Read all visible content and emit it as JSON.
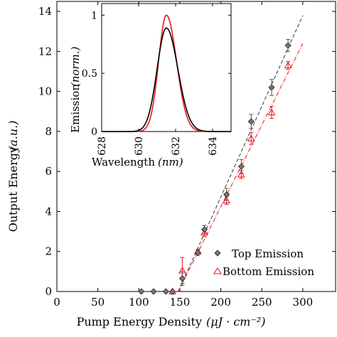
{
  "chart_data": [
    {
      "type": "scatter",
      "xlabel": "Pump Energy Density",
      "xlabel_units": "(μJ · cm⁻²)",
      "ylabel": "Output Energy",
      "ylabel_units": "(a.u.)",
      "xlim": [
        0,
        340
      ],
      "ylim": [
        0,
        14.5
      ],
      "xticks": [
        0,
        50,
        100,
        150,
        200,
        250,
        300
      ],
      "yticks": [
        0,
        2,
        4,
        6,
        8,
        10,
        12,
        14
      ],
      "grid": false,
      "legend": "bottom-right",
      "series": [
        {
          "name": "Top Emission",
          "marker": "diamond",
          "color": "#555555",
          "x": [
            103,
            118,
            133,
            141,
            153,
            172,
            180,
            207,
            225,
            237,
            262,
            282
          ],
          "y": [
            0.0,
            0.0,
            0.0,
            0.0,
            0.65,
            1.95,
            3.1,
            4.85,
            6.25,
            8.5,
            10.2,
            12.3
          ],
          "err": [
            0,
            0,
            0,
            0,
            0.35,
            0.15,
            0.2,
            0.3,
            0.35,
            0.35,
            0.4,
            0.3
          ],
          "fit": {
            "x": [
              148,
              300
            ],
            "y": [
              0.0,
              13.8
            ],
            "style": "dashed",
            "color": "#333333"
          }
        },
        {
          "name": "Bottom Emission",
          "marker": "triangle",
          "color": "#e8141b",
          "x": [
            141,
            153,
            172,
            180,
            207,
            225,
            237,
            262,
            282
          ],
          "y": [
            0.0,
            1.05,
            2.0,
            2.95,
            4.55,
            5.85,
            7.65,
            8.95,
            11.3
          ],
          "err": [
            0,
            0.65,
            0.1,
            0.2,
            0.2,
            0.2,
            0.3,
            0.3,
            0.2
          ],
          "fit": {
            "x": [
              148,
              300
            ],
            "y": [
              0.0,
              12.4
            ],
            "style": "dashdot",
            "color": "#e8141b"
          }
        }
      ]
    },
    {
      "type": "line",
      "inset": true,
      "xlabel": "Wavelength",
      "xlabel_units": "(nm)",
      "ylabel": "Emission",
      "ylabel_units": "(norm.)",
      "xlim": [
        628,
        635
      ],
      "ylim": [
        0,
        1.1
      ],
      "xticks": [
        628,
        630,
        632,
        634
      ],
      "yticks": [
        0,
        0.5,
        1
      ],
      "grid": false,
      "series": [
        {
          "color": "#e8141b",
          "peak": 631.5,
          "amplitude": 1.0,
          "width_left": 0.42,
          "width_right": 0.55
        },
        {
          "color": "#000000",
          "peak": 631.5,
          "amplitude": 0.89,
          "width_left": 0.5,
          "width_right": 0.62
        }
      ]
    }
  ]
}
